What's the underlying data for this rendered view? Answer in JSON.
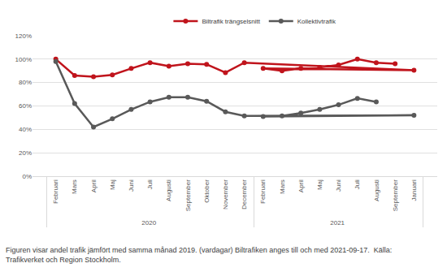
{
  "chart_data": {
    "type": "line",
    "categories": [
      "Februari",
      "Mars",
      "April",
      "Maj",
      "Juni",
      "Juli",
      "Augusti",
      "September",
      "Oktober",
      "November",
      "December",
      "Januari",
      "Februari",
      "Mars",
      "April",
      "Maj",
      "Juni",
      "Juli",
      "Augusti",
      "September"
    ],
    "category_groups": [
      "2020",
      "2020",
      "2020",
      "2020",
      "2020",
      "2020",
      "2020",
      "2020",
      "2020",
      "2020",
      "2020",
      "2021",
      "2021",
      "2021",
      "2021",
      "2021",
      "2021",
      "2021",
      "2021",
      "2021"
    ],
    "series": [
      {
        "name": "Biltrafik trängselsnitt",
        "color": "#c0141c",
        "marker": "circle",
        "values": [
          100,
          86,
          85,
          86.5,
          92,
          97,
          94,
          96,
          95.5,
          88.5,
          97,
          90.5,
          92,
          90,
          92,
          93,
          95,
          100,
          97,
          96
        ]
      },
      {
        "name": "Kollektivtrafik",
        "color": "#595959",
        "marker": "circle",
        "values": [
          98,
          62,
          42,
          49,
          57,
          63.5,
          67.5,
          67.5,
          64,
          55,
          51.5,
          52,
          51,
          51.5,
          54,
          57,
          61,
          66.5,
          63.5,
          null
        ]
      }
    ],
    "ylim": [
      0,
      120
    ],
    "yticks": [
      {
        "value": 0,
        "label": "0%"
      },
      {
        "value": 20,
        "label": "20%"
      },
      {
        "value": 40,
        "label": "40%"
      },
      {
        "value": 60,
        "label": "60%"
      },
      {
        "value": 80,
        "label": "80%"
      },
      {
        "value": 100,
        "label": "100%"
      },
      {
        "value": 120,
        "label": "120%"
      }
    ],
    "grid": true,
    "legend": "top",
    "caption": [
      "Figuren visar andel trafik jämfört med samma månad 2019. (vardagar) Biltrafiken anges till och med 2021-09-17.  Källa:",
      "Trafikverket och Region Stockholm."
    ]
  }
}
